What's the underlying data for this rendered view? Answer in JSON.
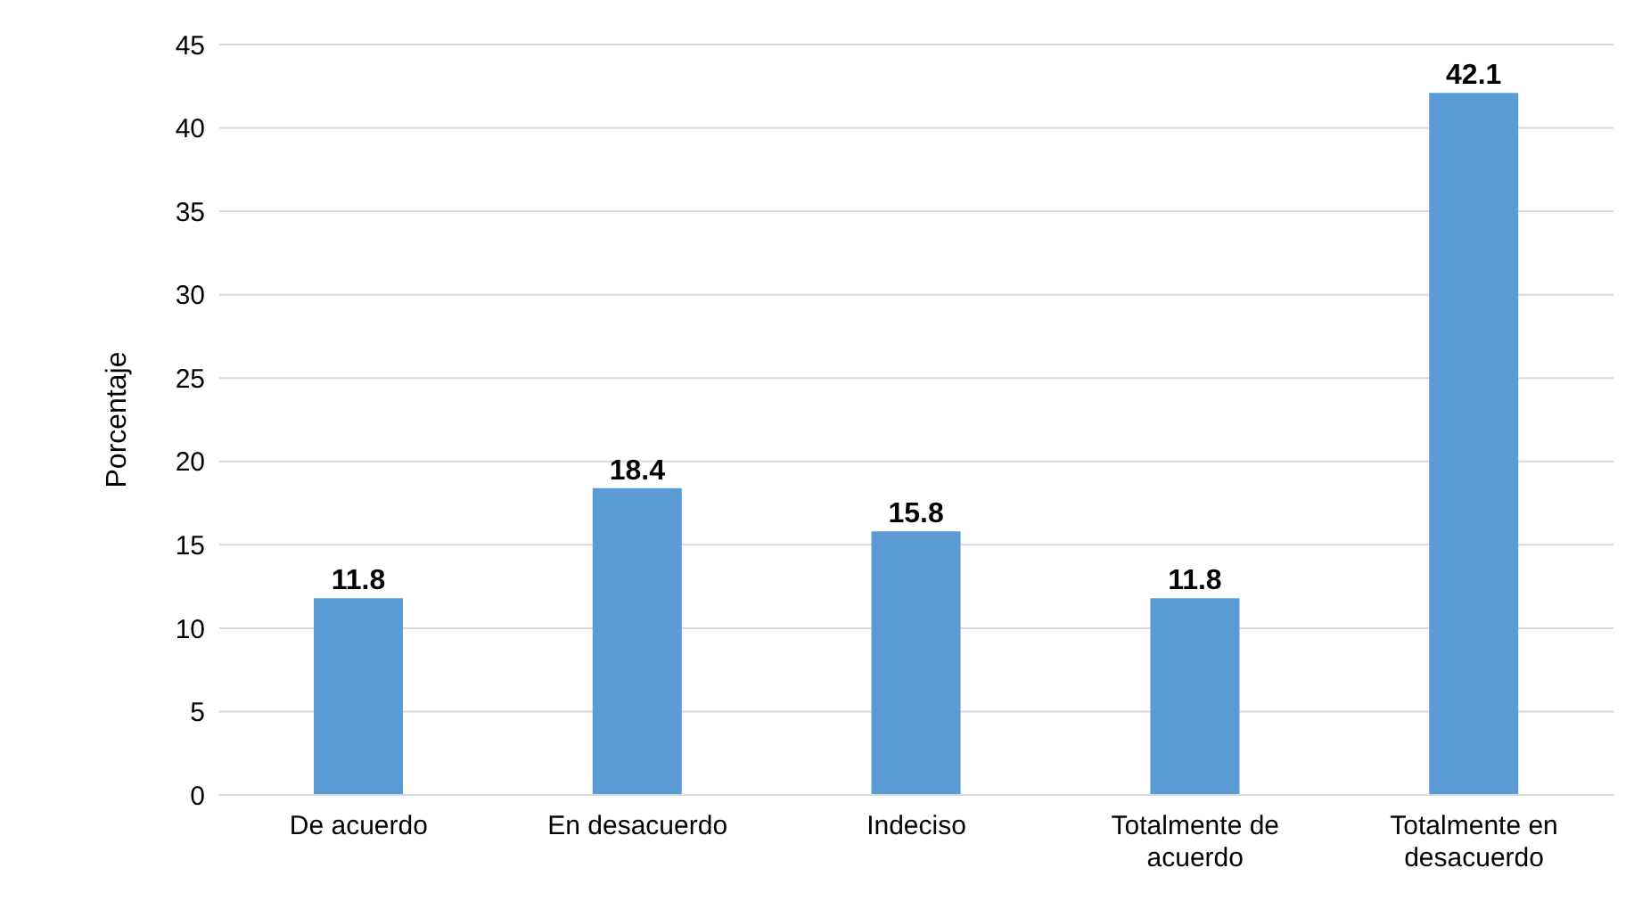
{
  "chart_data": {
    "type": "bar",
    "ylabel": "Porcentaje",
    "categories": [
      "De acuerdo",
      "En desacuerdo",
      "Indeciso",
      "Totalmente de acuerdo",
      "Totalmente en desacuerdo"
    ],
    "values": [
      11.8,
      18.4,
      15.8,
      11.8,
      42.1
    ],
    "color": "#5b9bd5",
    "ylim": [
      0,
      45
    ],
    "yticks": [
      0,
      5,
      10,
      15,
      20,
      25,
      30,
      35,
      40,
      45
    ],
    "grid": "y",
    "data_labels": true
  }
}
